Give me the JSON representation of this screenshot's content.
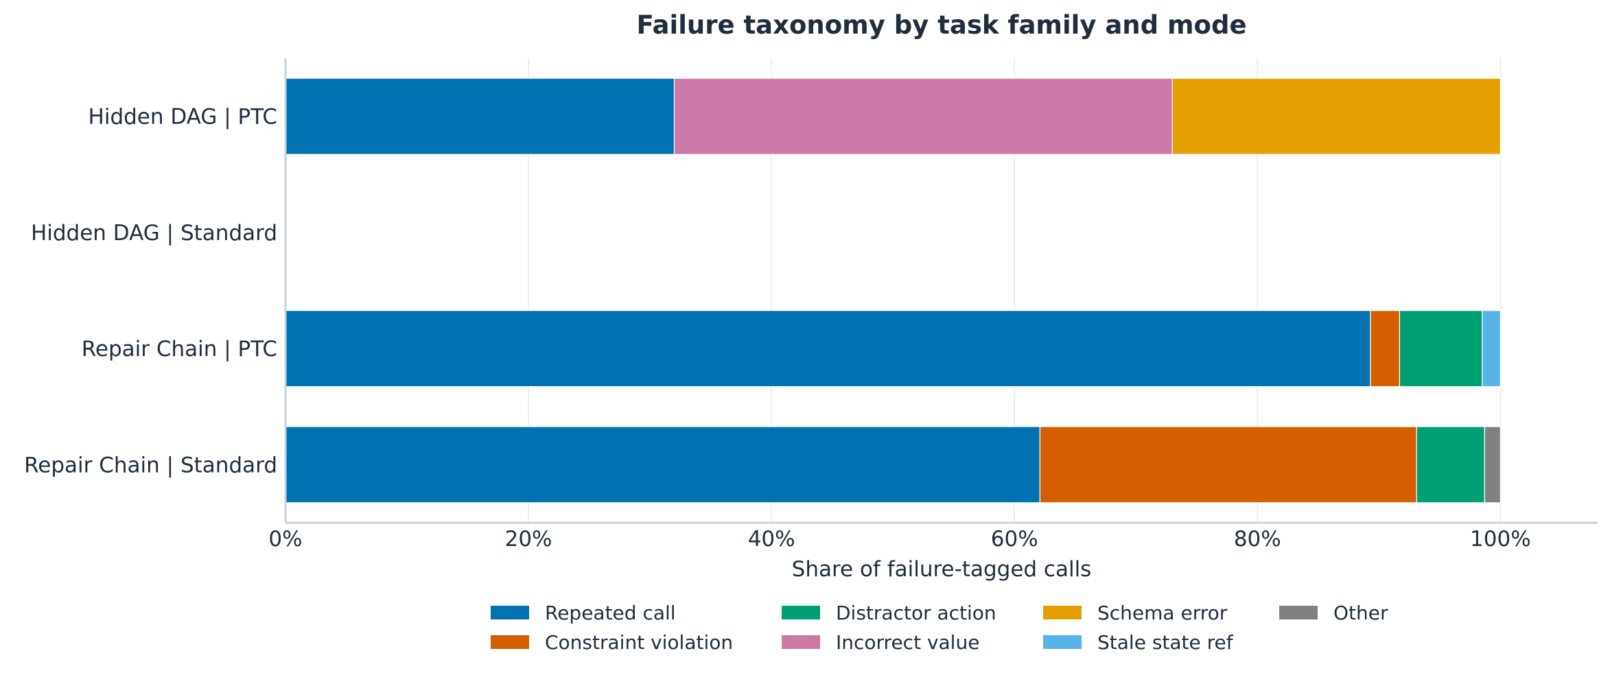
{
  "chart_data": {
    "type": "bar",
    "orientation": "horizontal",
    "stacked": true,
    "title": "Failure taxonomy by task family and mode",
    "xlabel": "Share of failure-tagged calls",
    "ylabel": "",
    "xlim": [
      0,
      1.08
    ],
    "xticks": [
      0,
      0.2,
      0.4,
      0.6,
      0.8,
      1.0
    ],
    "xtick_labels": [
      "0%",
      "20%",
      "40%",
      "60%",
      "80%",
      "100%"
    ],
    "grid": "vertical",
    "legend_position": "bottom-center",
    "categories": [
      "Hidden DAG | PTC",
      "Hidden DAG | Standard",
      "Repair Chain | PTC",
      "Repair Chain | Standard"
    ],
    "series": [
      {
        "name": "Repeated call",
        "color": "#0072b2",
        "values": [
          0.32,
          0,
          0.893,
          0.621
        ]
      },
      {
        "name": "Constraint violation",
        "color": "#d55e00",
        "values": [
          0,
          0,
          0.024,
          0.31
        ]
      },
      {
        "name": "Distractor action",
        "color": "#009e73",
        "values": [
          0,
          0,
          0.068,
          0.056
        ]
      },
      {
        "name": "Incorrect value",
        "color": "#cc79a7",
        "values": [
          0.41,
          0,
          0,
          0
        ]
      },
      {
        "name": "Schema error",
        "color": "#e69f00",
        "values": [
          0.27,
          0,
          0,
          0
        ]
      },
      {
        "name": "Stale state ref",
        "color": "#56b4e9",
        "values": [
          0,
          0,
          0.015,
          0
        ]
      },
      {
        "name": "Other",
        "color": "#808080",
        "values": [
          0,
          0,
          0,
          0.013
        ]
      }
    ]
  }
}
